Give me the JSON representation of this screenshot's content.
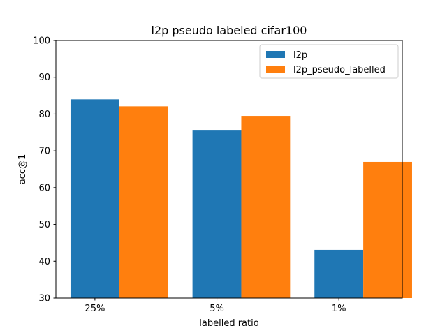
{
  "chart_data": {
    "type": "bar",
    "title": "l2p pseudo labeled cifar100",
    "xlabel": "labelled ratio",
    "ylabel": "acc@1",
    "categories": [
      "25%",
      "5%",
      "1%"
    ],
    "ylim": [
      30,
      100
    ],
    "yticks": [
      30,
      40,
      50,
      60,
      70,
      80,
      90,
      100
    ],
    "grid": false,
    "legend_position": "top-right",
    "series": [
      {
        "name": "l2p",
        "color": "#1f77b4",
        "values": [
          84.0,
          75.7,
          43.1
        ]
      },
      {
        "name": "l2p_pseudo_labelled",
        "color": "#ff7f0e",
        "values": [
          82.1,
          79.5,
          67.0
        ]
      }
    ]
  }
}
